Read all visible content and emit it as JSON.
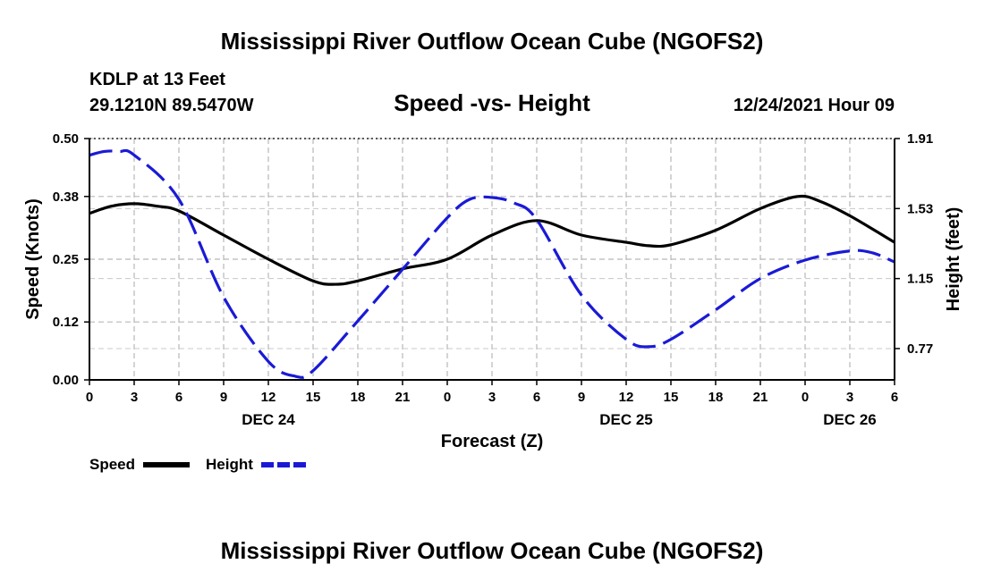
{
  "chart_data": {
    "type": "line",
    "title": "Mississippi River Outflow Ocean Cube (NGOFS2)",
    "footer_title": "Mississippi River Outflow Ocean Cube (NGOFS2)",
    "station": "KDLP at 13 Feet",
    "location": "29.1210N  89.5470W",
    "subtitle": "Speed -vs- Height",
    "datetime": "12/24/2021 Hour 09",
    "xlabel": "Forecast (Z)",
    "ylabel": "Speed (Knots)",
    "y2label": "Height (feet)",
    "x_range": [
      0,
      54
    ],
    "ylim": [
      0,
      0.5
    ],
    "y2lim": [
      0.6,
      1.91
    ],
    "x_tick_values": [
      0,
      3,
      6,
      9,
      12,
      15,
      18,
      21,
      24,
      27,
      30,
      33,
      36,
      39,
      42,
      45,
      48,
      51,
      54
    ],
    "x_tick_labels": [
      "0",
      "3",
      "6",
      "9",
      "12",
      "15",
      "18",
      "21",
      "0",
      "3",
      "6",
      "9",
      "12",
      "15",
      "18",
      "21",
      "0",
      "3",
      "6"
    ],
    "y_ticks": [
      0.0,
      0.12,
      0.25,
      0.38,
      0.5
    ],
    "y_tick_labels": [
      "0.00",
      "0.12",
      "0.25",
      "0.38",
      "0.50"
    ],
    "y2_ticks": [
      0.77,
      1.15,
      1.53,
      1.91
    ],
    "y2_tick_labels": [
      "0.77",
      "1.15",
      "1.53",
      "1.91"
    ],
    "date_labels": [
      {
        "x": 12,
        "text": "DEC 24"
      },
      {
        "x": 36,
        "text": "DEC 25"
      },
      {
        "x": 51,
        "text": "DEC 26"
      }
    ],
    "grid": true,
    "legend_position": "bottom-left",
    "series": [
      {
        "name": "Speed",
        "axis": "left",
        "color": "#000000",
        "style": "solid",
        "x": [
          0,
          1.5,
          3,
          4.5,
          6,
          9,
          12,
          15,
          16.5,
          18,
          21,
          24,
          27,
          30,
          33,
          36,
          37.5,
          39,
          42,
          45,
          47.5,
          49,
          51,
          54
        ],
        "values": [
          0.345,
          0.36,
          0.365,
          0.36,
          0.35,
          0.3,
          0.25,
          0.205,
          0.198,
          0.205,
          0.23,
          0.25,
          0.3,
          0.33,
          0.3,
          0.285,
          0.278,
          0.28,
          0.31,
          0.355,
          0.38,
          0.37,
          0.34,
          0.285
        ]
      },
      {
        "name": "Height",
        "axis": "right",
        "color": "#1a1ad6",
        "style": "dashed",
        "x": [
          0,
          1,
          2,
          3,
          6,
          9,
          12,
          13.8,
          15,
          18,
          21,
          24,
          25.5,
          27,
          28.5,
          30,
          33,
          36,
          37.5,
          39,
          42,
          45,
          48,
          51,
          52.5,
          54
        ],
        "values": [
          1.82,
          1.84,
          1.84,
          1.82,
          1.58,
          1.05,
          0.7,
          0.62,
          0.65,
          0.92,
          1.2,
          1.48,
          1.58,
          1.59,
          1.56,
          1.47,
          1.06,
          0.82,
          0.78,
          0.82,
          0.98,
          1.15,
          1.25,
          1.3,
          1.29,
          1.24
        ]
      }
    ]
  }
}
